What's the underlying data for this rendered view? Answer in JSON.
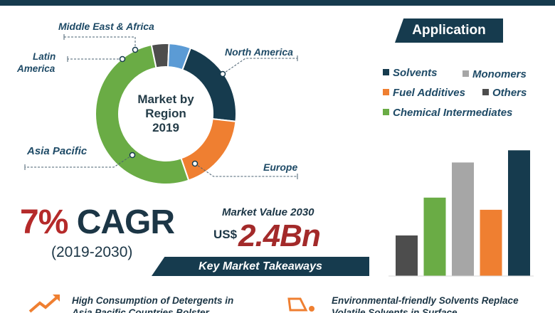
{
  "donut": {
    "center_lines": [
      "Market by",
      "Region",
      "2019"
    ],
    "regions": [
      {
        "name": "North America",
        "share": 21,
        "color": "#163b4e"
      },
      {
        "name": "Europe",
        "share": 18,
        "color": "#ef7f31"
      },
      {
        "name": "Asia Pacific",
        "share": 52,
        "color": "#6aac45"
      },
      {
        "name": "Latin America",
        "share": 4,
        "color": "#4d4d4d"
      },
      {
        "name": "Middle East & Africa",
        "share": 5,
        "color": "#5b9bd5"
      }
    ],
    "labels": {
      "north_america": "North America",
      "europe": "Europe",
      "asia_pacific": "Asia Pacific",
      "latin": "Latin",
      "america": "America",
      "mea": "Middle East & Africa"
    }
  },
  "application": {
    "title": "Application",
    "legend": [
      {
        "name": "Solvents",
        "color": "#163b4e"
      },
      {
        "name": "Monomers",
        "color": "#a6a6a6"
      },
      {
        "name": "Fuel Additives",
        "color": "#ef7f31"
      },
      {
        "name": "Others",
        "color": "#4d4d4d"
      },
      {
        "name": "Chemical Intermediates",
        "color": "#6aac45"
      }
    ]
  },
  "chart_data": {
    "type": "bar",
    "categories": [
      "Others",
      "Chemical Intermediates",
      "Monomers",
      "Fuel Additives",
      "Solvents"
    ],
    "values": [
      30,
      58,
      84,
      49,
      93
    ],
    "colors": [
      "#4d4d4d",
      "#6aac45",
      "#a6a6a6",
      "#ef7f31",
      "#163b4e"
    ],
    "ylim": [
      0,
      100
    ]
  },
  "cagr": {
    "percent": "7%",
    "label": "CAGR",
    "period": "(2019-2030)"
  },
  "market_value": {
    "title": "Market Value 2030",
    "currency": "US$",
    "value": "2.4Bn"
  },
  "key_takeaways": "Key Market Takeaways",
  "bullets": [
    {
      "line1": "High Consumption of Detergents in",
      "line2": "Asia Pacific Countries Bolster"
    },
    {
      "line1": "Environmental-friendly Solvents Replace",
      "line2": "Volatile Solvents in Surface"
    }
  ]
}
